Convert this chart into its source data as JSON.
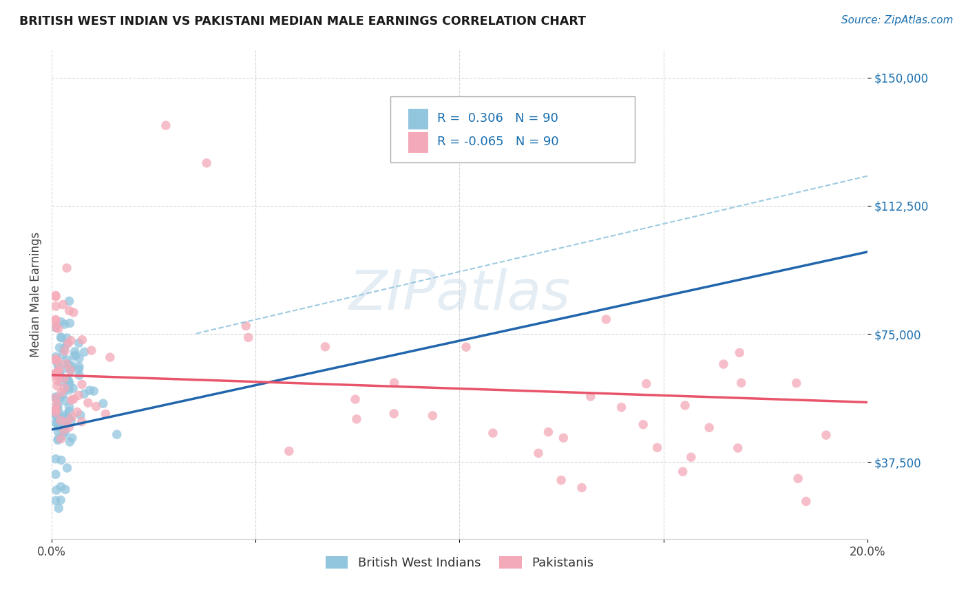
{
  "title": "BRITISH WEST INDIAN VS PAKISTANI MEDIAN MALE EARNINGS CORRELATION CHART",
  "source": "Source: ZipAtlas.com",
  "ylabel": "Median Male Earnings",
  "xmin": 0.0,
  "xmax": 0.2,
  "ymin": 15000,
  "ymax": 158000,
  "watermark": "ZIPatlas",
  "color_bwi": "#92c5de",
  "color_pak": "#f4a9b8",
  "color_blue": "#2166ac",
  "color_pink": "#e8546a",
  "color_text": "#1a6faf",
  "background": "#ffffff",
  "grid_color": "#cccccc",
  "ytick_positions": [
    37500,
    75000,
    112500,
    150000
  ],
  "ytick_labels": [
    "$37,500",
    "$75,000",
    "$112,500",
    "$150,000"
  ],
  "bwi_seed": 123,
  "pak_seed": 456
}
